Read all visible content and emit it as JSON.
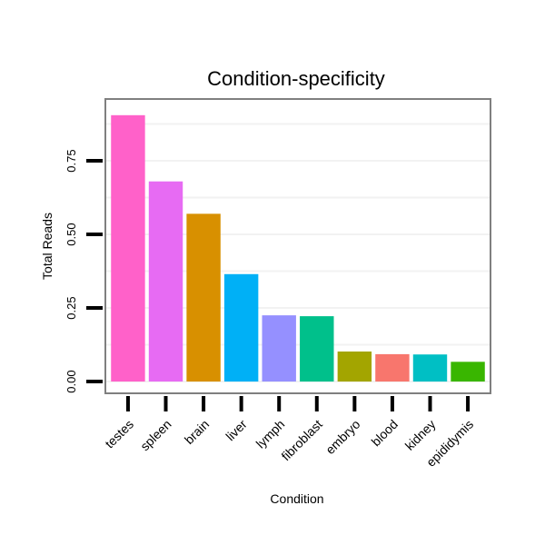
{
  "chart_data": {
    "type": "bar",
    "title": "Condition-specificity",
    "xlabel": "Condition",
    "ylabel": "Total Reads",
    "categories": [
      "testes",
      "spleen",
      "brain",
      "liver",
      "lymph",
      "fibroblast",
      "embryo",
      "blood",
      "kidney",
      "epididymis"
    ],
    "values": [
      0.905,
      0.68,
      0.57,
      0.365,
      0.225,
      0.222,
      0.102,
      0.093,
      0.092,
      0.067
    ],
    "colors": [
      "#FF61C9",
      "#E76BF3",
      "#D89000",
      "#00B0F6",
      "#9590FF",
      "#00C08B",
      "#A3A500",
      "#F8766D",
      "#00BFC4",
      "#39B600"
    ],
    "yticks": [
      0.0,
      0.25,
      0.5,
      0.75
    ],
    "ytick_labels": [
      "0.00",
      "0.25",
      "0.50",
      "0.75"
    ],
    "ylim": [
      -0.04,
      0.96
    ],
    "grid": true,
    "legend": "none"
  }
}
